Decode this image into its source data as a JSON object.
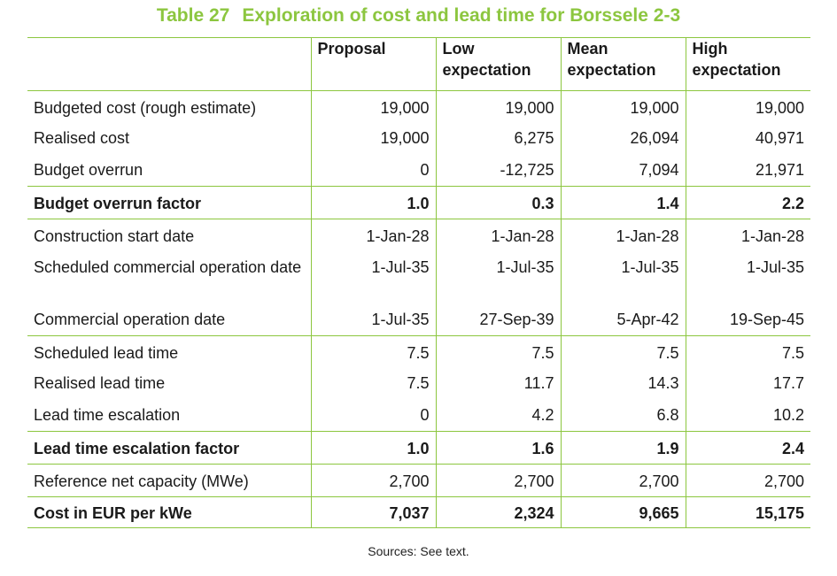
{
  "title": {
    "number": "Table 27",
    "text": "Exploration of cost and lead time for Borssele 2-3"
  },
  "columns": [
    {
      "label": ""
    },
    {
      "label": "Proposal"
    },
    {
      "label": "Low expectation"
    },
    {
      "label": "Mean expectation"
    },
    {
      "label": "High expectation"
    }
  ],
  "rows": [
    {
      "label": "Budgeted cost (rough estimate)",
      "values": [
        "19,000",
        "19,000",
        "19,000",
        "19,000"
      ],
      "bold": false
    },
    {
      "label": "Realised cost",
      "values": [
        "19,000",
        "6,275",
        "26,094",
        "40,971"
      ],
      "bold": false
    },
    {
      "label": "Budget overrun",
      "values": [
        "0",
        "-12,725",
        "7,094",
        "21,971"
      ],
      "bold": false
    },
    {
      "label": "Budget overrun factor",
      "values": [
        "1.0",
        "0.3",
        "1.4",
        "2.2"
      ],
      "bold": true
    },
    {
      "label": "Construction start date",
      "values": [
        "1-Jan-28",
        "1-Jan-28",
        "1-Jan-28",
        "1-Jan-28"
      ],
      "bold": false
    },
    {
      "label": "Scheduled commercial operation date",
      "values": [
        "1-Jul-35",
        "1-Jul-35",
        "1-Jul-35",
        "1-Jul-35"
      ],
      "bold": false
    },
    {
      "label": "Commercial operation date",
      "values": [
        "1-Jul-35",
        "27-Sep-39",
        "5-Apr-42",
        "19-Sep-45"
      ],
      "bold": false
    },
    {
      "label": "Scheduled lead time",
      "values": [
        "7.5",
        "7.5",
        "7.5",
        "7.5"
      ],
      "bold": false
    },
    {
      "label": "Realised lead time",
      "values": [
        "7.5",
        "11.7",
        "14.3",
        "17.7"
      ],
      "bold": false
    },
    {
      "label": "Lead time escalation",
      "values": [
        "0",
        "4.2",
        "6.8",
        "10.2"
      ],
      "bold": false
    },
    {
      "label": "Lead time escalation factor",
      "values": [
        "1.0",
        "1.6",
        "1.9",
        "2.4"
      ],
      "bold": true
    },
    {
      "label": "Reference net capacity (MWe)",
      "values": [
        "2,700",
        "2,700",
        "2,700",
        "2,700"
      ],
      "bold": false
    },
    {
      "label": "Cost in EUR per kWe",
      "values": [
        "7,037",
        "2,324",
        "9,665",
        "15,175"
      ],
      "bold": true
    }
  ],
  "source": "Sources: See text.",
  "colors": {
    "accent": "#8cc63f",
    "text": "#1a1a1a"
  }
}
